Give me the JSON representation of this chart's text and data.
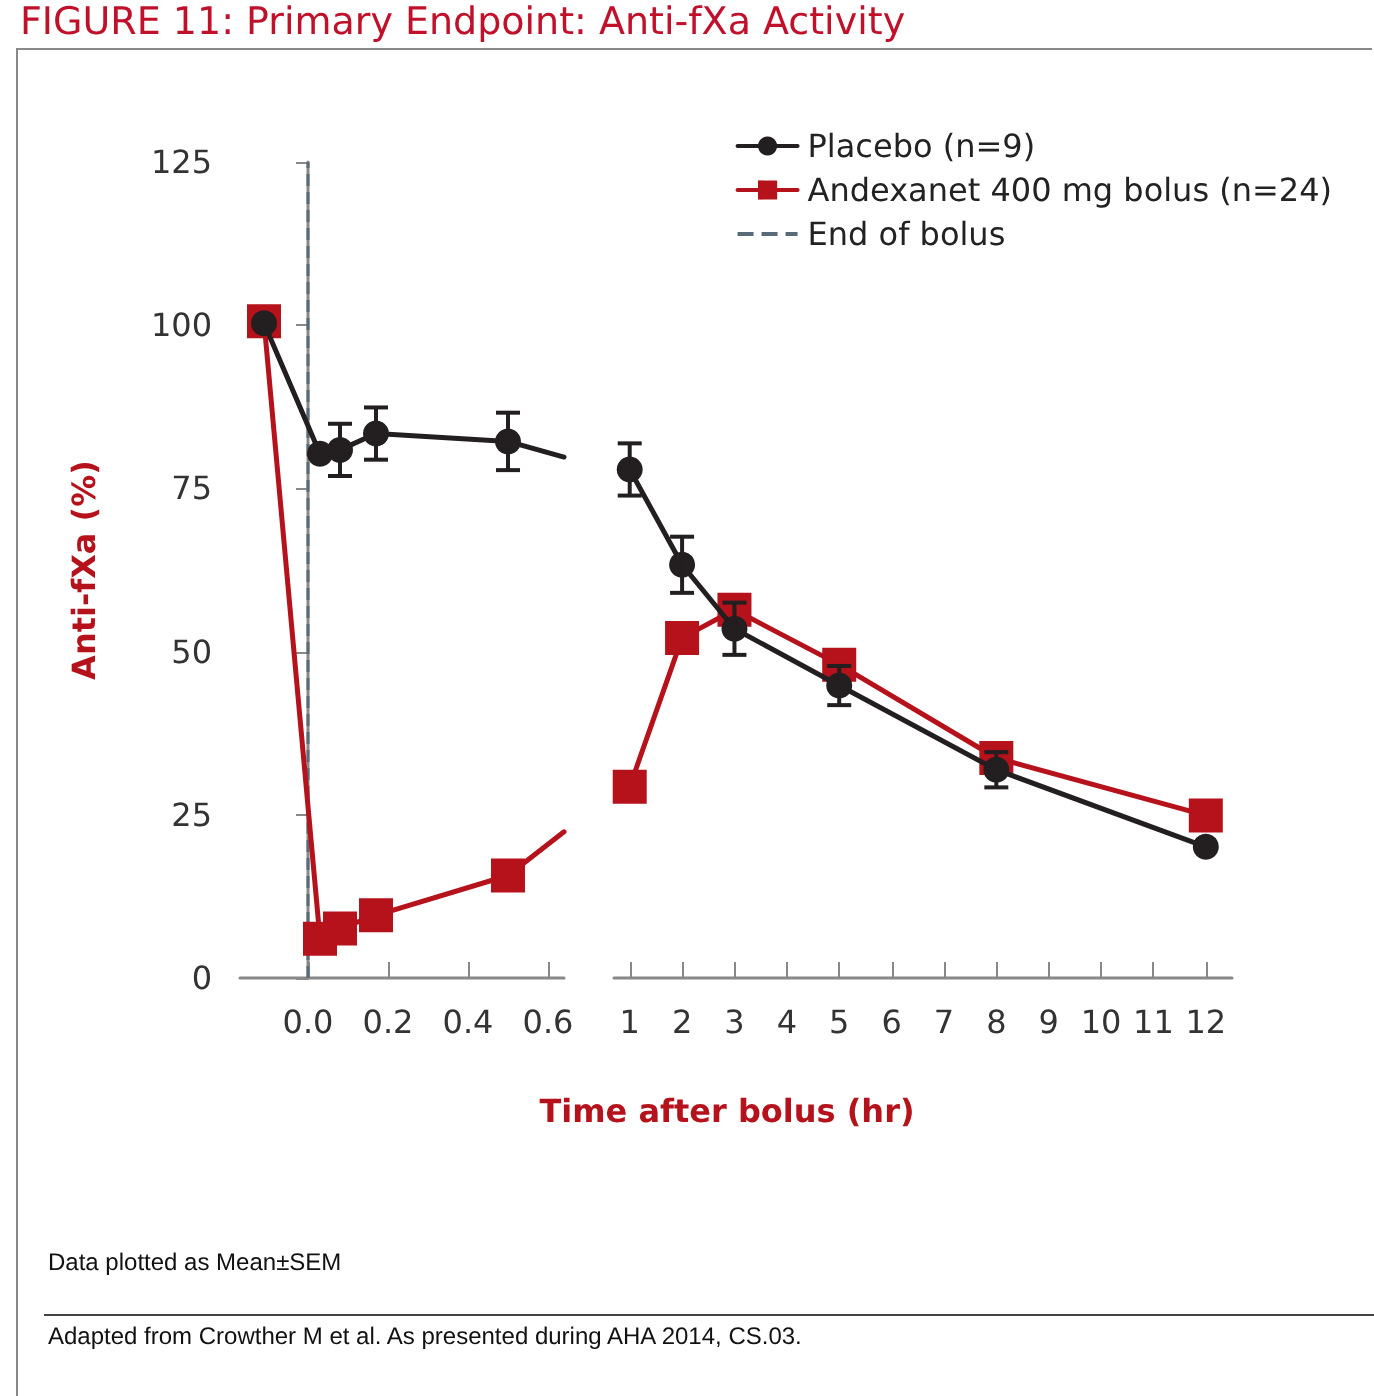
{
  "chart_data": [
    {
      "type": "line",
      "title": "FIGURE 11: Primary Endpoint: Anti-fXa Activity",
      "xlabel": "Time after bolus (hr)",
      "ylabel": "Anti-fXa (%)",
      "annotations": [
        "Data plotted as Mean±SEM",
        "Adapted from Crowther M et al. As presented during AHA 2014, CS.03."
      ],
      "xlim": [
        -0.17,
        0.64
      ],
      "xticks": [
        {
          "value": 0,
          "label": "0.0"
        },
        0.2,
        0.4,
        0.6
      ],
      "ylim": [
        0,
        125
      ],
      "yticks": [
        0,
        25,
        50,
        75,
        100,
        125
      ],
      "grid": false,
      "legend": false,
      "ref_lines": [
        {
          "axis": "x",
          "value": 0,
          "label": "End of bolus",
          "color": "#5a6b78",
          "line_style": "dashed"
        }
      ],
      "series": [
        {
          "color": "#231f20",
          "marker": "circle",
          "x": [
            -0.11,
            0.03,
            0.08,
            0.17,
            0.5,
            0.64
          ],
          "values": [
            100.3,
            80.3,
            80.9,
            83.4,
            82.2,
            79.8
          ],
          "errors": [
            null,
            null,
            4,
            4,
            4.4,
            null
          ]
        },
        {
          "color": "#b5121b",
          "marker": "square",
          "x": [
            -0.11,
            0.03,
            0.08,
            0.17,
            0.5,
            0.64
          ],
          "values": [
            100.6,
            6,
            7.6,
            9.6,
            15.7,
            22.4
          ]
        }
      ]
    },
    {
      "type": "line",
      "xlim": [
        0.7,
        12.5
      ],
      "xticks": [
        1,
        2,
        3,
        4,
        5,
        6,
        7,
        8,
        9,
        10,
        11,
        12
      ],
      "ylim": [
        0,
        125
      ],
      "tick_labels": "x",
      "grid": false,
      "legend": "top right",
      "series": [
        {
          "name": "Placebo (n=9)",
          "color": "#231f20",
          "marker": "circle",
          "x": [
            1,
            2,
            3,
            5,
            8,
            12
          ],
          "values": [
            77.9,
            63.3,
            53.5,
            44.8,
            31.9,
            20.1
          ],
          "errors": [
            4,
            4.3,
            4,
            3,
            2.7,
            null
          ]
        },
        {
          "name": "Andexanet 400 mg bolus (n=24)",
          "color": "#b5121b",
          "marker": "square",
          "x": [
            1,
            2,
            3,
            5,
            8,
            12
          ],
          "values": [
            29.3,
            52.1,
            56.4,
            48.0,
            33.7,
            24.9
          ]
        }
      ]
    }
  ]
}
